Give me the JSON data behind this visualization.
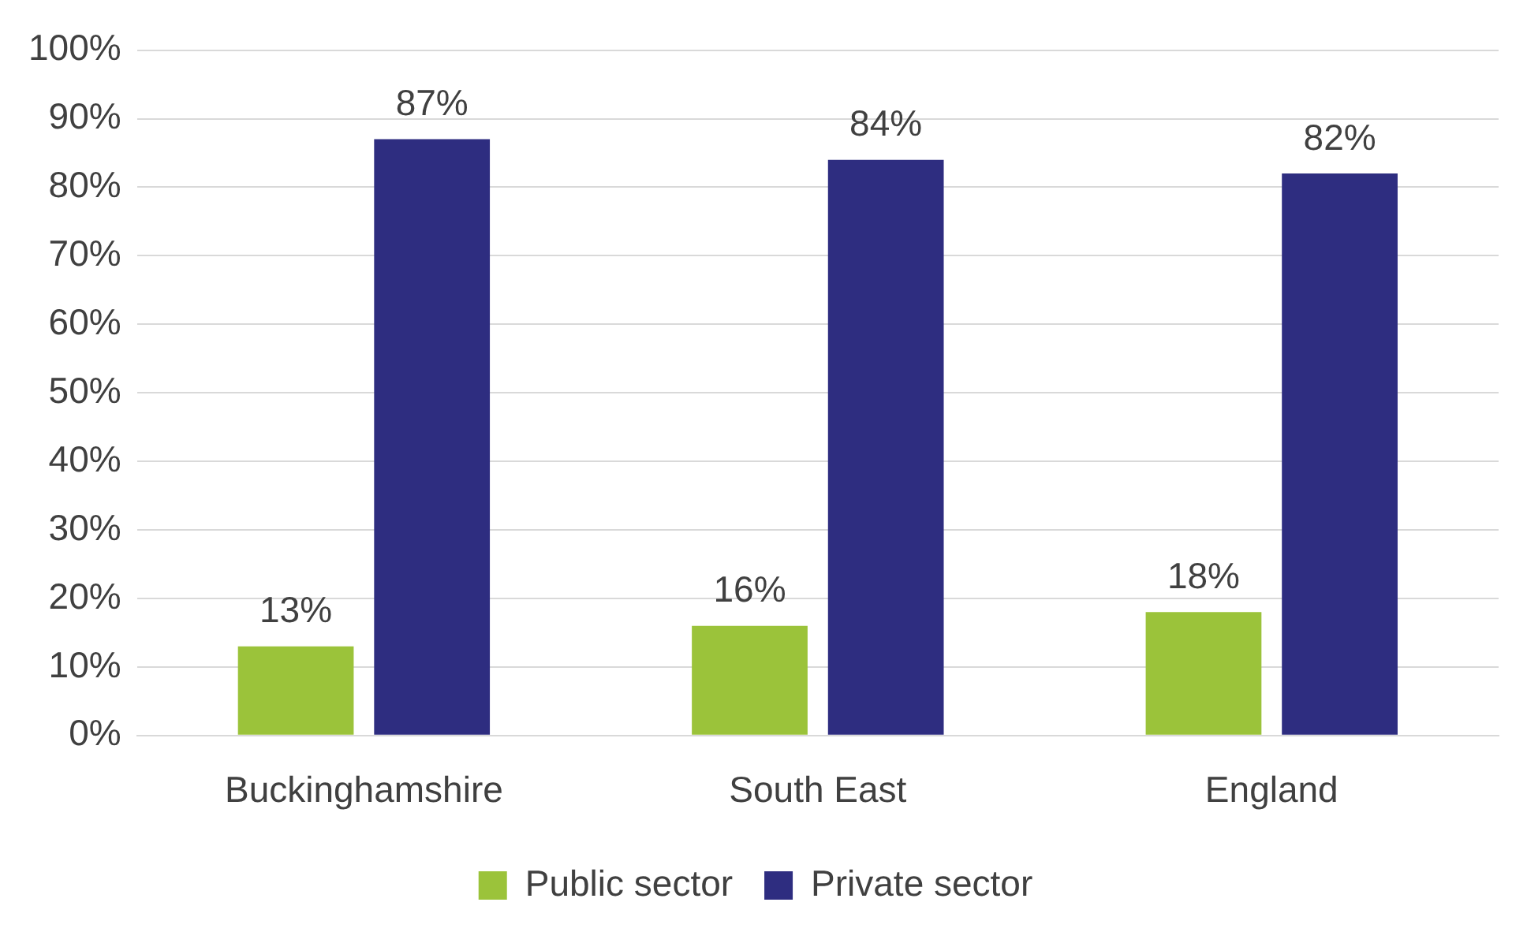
{
  "chart_data": {
    "type": "bar",
    "categories": [
      "Buckinghamshire",
      "South East",
      "England"
    ],
    "series": [
      {
        "name": "Public sector",
        "color": "#9bc33a",
        "values": [
          13,
          16,
          18
        ],
        "value_labels": [
          "13%",
          "16%",
          "18%"
        ]
      },
      {
        "name": "Private sector",
        "color": "#2e2d80",
        "values": [
          87,
          84,
          82
        ],
        "value_labels": [
          "87%",
          "84%",
          "82%"
        ]
      }
    ],
    "ylim": [
      0,
      100
    ],
    "yticks": [
      {
        "value": 0,
        "label": "0%"
      },
      {
        "value": 10,
        "label": "10%"
      },
      {
        "value": 20,
        "label": "20%"
      },
      {
        "value": 30,
        "label": "30%"
      },
      {
        "value": 40,
        "label": "40%"
      },
      {
        "value": 50,
        "label": "50%"
      },
      {
        "value": 60,
        "label": "60%"
      },
      {
        "value": 70,
        "label": "70%"
      },
      {
        "value": 80,
        "label": "80%"
      },
      {
        "value": 90,
        "label": "90%"
      },
      {
        "value": 100,
        "label": "100%"
      }
    ],
    "grid": "y",
    "legend": "bottom"
  }
}
